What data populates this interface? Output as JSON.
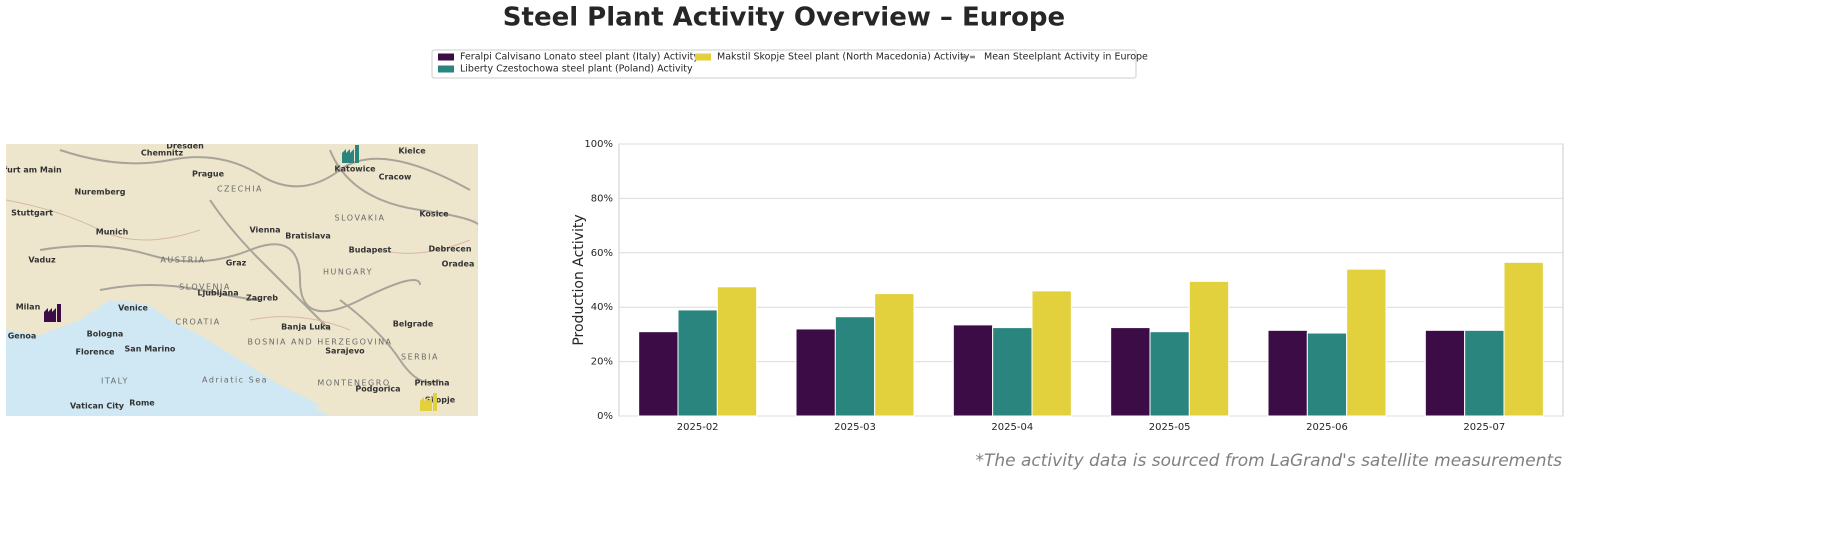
{
  "chart_data": {
    "type": "bar",
    "title": "Steel Plant Activity Overview – Europe",
    "y_label": "Production Activity",
    "footnote": "*The activity data is sourced from LaGrand's satellite measurements",
    "categories": [
      "2025-02",
      "2025-03",
      "2025-04",
      "2025-05",
      "2025-06",
      "2025-07"
    ],
    "series": [
      {
        "name": "Feralpi Calvisano Lonato steel plant (Italy) Activity",
        "color": "#3b0c45",
        "values": [
          31,
          32,
          33.5,
          32.5,
          31.5,
          31.5
        ]
      },
      {
        "name": "Liberty Czestochowa steel plant (Poland) Activity",
        "color": "#2a857e",
        "values": [
          39,
          36.5,
          32.5,
          31,
          30.5,
          31.5
        ]
      },
      {
        "name": "Makstil Skopje Steel plant (North Macedonia) Activity",
        "color": "#e2d03c",
        "values": [
          47.5,
          45,
          46,
          49.5,
          54,
          56.5
        ]
      },
      {
        "name": "Mean Steelplant Activity in Europe",
        "color": "#888888",
        "style": "dashed",
        "values": [
          null,
          null,
          null,
          null,
          null,
          null
        ]
      }
    ],
    "ylim": [
      0,
      100
    ],
    "yticks": [
      {
        "value": 0,
        "label": "0%"
      },
      {
        "value": 20,
        "label": "20%"
      },
      {
        "value": 40,
        "label": "40%"
      },
      {
        "value": 60,
        "label": "60%"
      },
      {
        "value": 80,
        "label": "80%"
      },
      {
        "value": 100,
        "label": "100%"
      }
    ],
    "grid": true
  },
  "map": {
    "labels": [
      "Dresden",
      "Chemnitz",
      "Frankfurt am Main",
      "Nuremberg",
      "Prague",
      "CZECHIA",
      "Katowice",
      "Cracow",
      "Kielce",
      "Stuttgart",
      "Munich",
      "Vienna",
      "Bratislava",
      "SLOVAKIA",
      "Kosice",
      "Budapest",
      "Debrecen",
      "Vaduz",
      "AUSTRIA",
      "Graz",
      "HUNGARY",
      "Oradea",
      "SLOVENIA",
      "Ljubljana",
      "Zagreb",
      "Milan",
      "Venice",
      "CROATIA",
      "Genoa",
      "Bologna",
      "San Marino",
      "Banja Luka",
      "BOSNIA AND HERZEGOVINA",
      "Belgrade",
      "Florence",
      "Sarajevo",
      "SERBIA",
      "ITALY",
      "Adriatic Sea",
      "MONTENEGRO",
      "Podgorica",
      "Pristina",
      "Vatican City",
      "Rome",
      "Skopje"
    ]
  }
}
